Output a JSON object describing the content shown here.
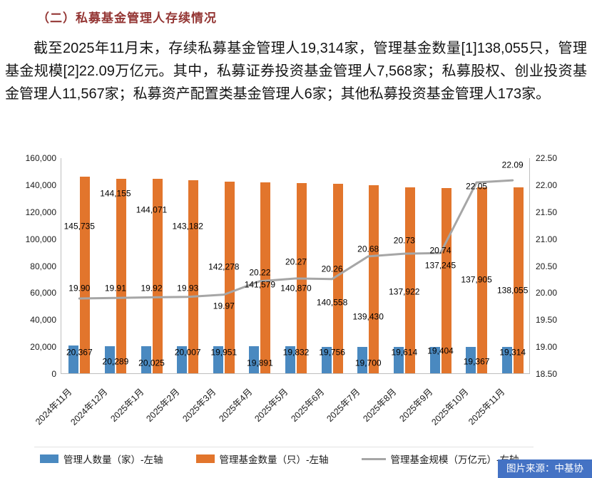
{
  "document": {
    "section_title": "（二）私募基金管理人存续情况",
    "paragraph": "截至2025年11月末，存续私募基金管理人19,314家，管理基金数量[1]138,055只，管理基金规模[2]22.09万亿元。其中，私募证券投资基金管理人7,568家；私募股权、创业投资基金管理人11,567家；私募资产配置类基金管理人6家；其他私募投资基金管理人173家。"
  },
  "source_label": "图片来源：中基协",
  "colors": {
    "title_text": "#943634",
    "manager_bar": "#4a89c0",
    "fund_bar": "#e2752c",
    "scale_line": "#a6a6a6",
    "source_badge_bg": "#4472c4"
  },
  "chart_data": {
    "type": "bar",
    "subtype": "bar+line combo, dual axis",
    "grid": false,
    "legend_position": "bottom",
    "categories": [
      "2024年11月",
      "2024年12月",
      "2025年1月",
      "2025年2月",
      "2025年3月",
      "2025年4月",
      "2025年5月",
      "2025年6月",
      "2025年7月",
      "2025年8月",
      "2025年9月",
      "2025年10月",
      "2025年11月"
    ],
    "series": [
      {
        "name": "管理人数量（家）-左轴",
        "type": "bar",
        "axis": "left",
        "color": "#4a89c0",
        "values": [
          20367,
          20289,
          20025,
          20007,
          19951,
          19891,
          19832,
          19756,
          19700,
          19614,
          19404,
          19367,
          19314
        ]
      },
      {
        "name": "管理基金数量（只）-左轴",
        "type": "bar",
        "axis": "left",
        "color": "#e2752c",
        "values": [
          145735,
          144155,
          144071,
          143182,
          142278,
          141579,
          140870,
          140558,
          139430,
          137922,
          137245,
          137905,
          138055
        ]
      },
      {
        "name": "管理基金规模（万亿元）-右轴",
        "type": "line",
        "axis": "right",
        "color": "#a6a6a6",
        "values": [
          19.9,
          19.91,
          19.92,
          19.93,
          19.97,
          20.22,
          20.27,
          20.26,
          20.68,
          20.73,
          20.74,
          22.05,
          22.09
        ]
      }
    ],
    "left_axis": {
      "min": 0,
      "max": 160000,
      "step": 20000,
      "tick_labels": [
        "0",
        "20,000",
        "40,000",
        "60,000",
        "80,000",
        "100,000",
        "120,000",
        "140,000",
        "160,000"
      ]
    },
    "right_axis": {
      "min": 18.5,
      "max": 22.5,
      "step": 0.5,
      "tick_labels": [
        "18.50",
        "19.00",
        "19.50",
        "20.00",
        "20.50",
        "21.00",
        "21.50",
        "22.00",
        "22.50"
      ]
    }
  }
}
